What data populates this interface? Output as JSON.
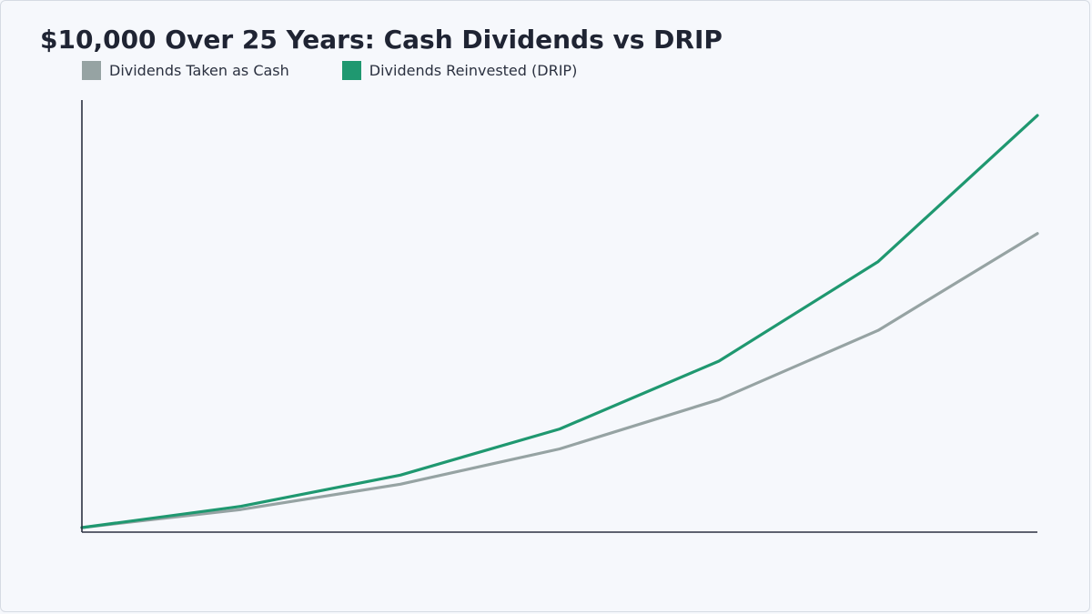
{
  "chart_data": {
    "type": "line",
    "title": "$10,000 Over 25 Years: Cash Dividends vs DRIP",
    "xlabel": "",
    "ylabel": "",
    "x": [
      0,
      1,
      2,
      3,
      4,
      5,
      6
    ],
    "series": [
      {
        "name": "Dividends Taken as Cash",
        "color": "#96a3a3",
        "values": [
          10000,
          14000,
          19600,
          27400,
          38300,
          53600,
          75000
        ]
      },
      {
        "name": "Dividends Reinvested (DRIP)",
        "color": "#1f9870",
        "values": [
          10000,
          14700,
          21600,
          31800,
          46800,
          68800,
          101100
        ]
      }
    ],
    "xlim": [
      0,
      6
    ],
    "ylim": [
      9000,
      104500
    ],
    "grid": false,
    "legend": "top-left"
  }
}
